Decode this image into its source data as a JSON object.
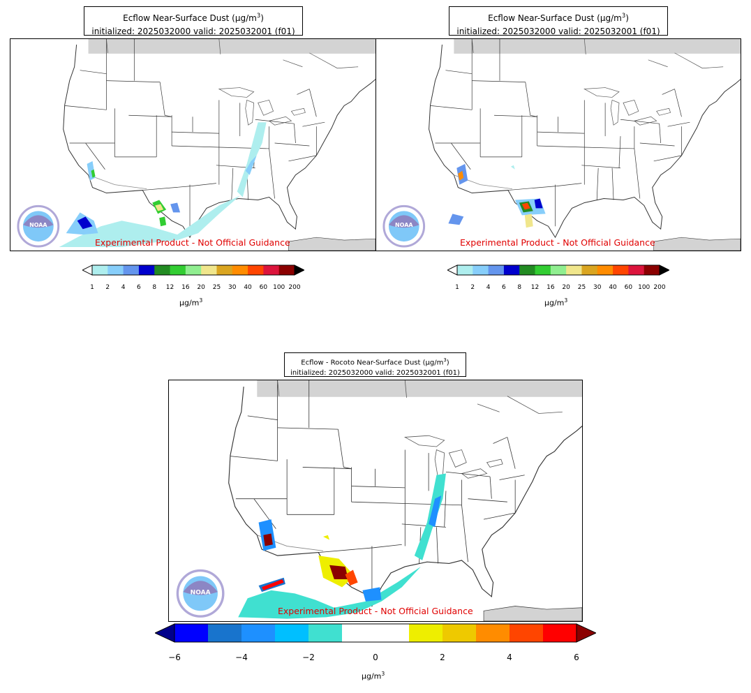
{
  "panels": [
    {
      "title_line1": "Ecflow Near-Surface Dust (μg/m",
      "title_sup": "3",
      "title_tail": ")",
      "title_line2": "initialized: 2025032000 valid: 2025032001 (f01)",
      "disclaimer": "Experimental Product - Not Official Guidance",
      "logo_text": "NOAA"
    },
    {
      "title_line1": "Ecflow Near-Surface Dust (μg/m",
      "title_sup": "3",
      "title_tail": ")",
      "title_line2": "initialized: 2025032000 valid: 2025032001 (f01)",
      "disclaimer": "Experimental Product - Not Official Guidance",
      "logo_text": "NOAA"
    },
    {
      "title_line1": "Ecflow - Rocoto Near-Surface Dust (μg/m",
      "title_sup": "3",
      "title_tail": ")",
      "title_line2": "initialized: 2025032000 valid: 2025032001 (f01)",
      "disclaimer": "Experimental Product - Not Official Guidance",
      "logo_text": "NOAA"
    }
  ],
  "colorbar_concentration": {
    "ticks": [
      "1",
      "2",
      "4",
      "6",
      "8",
      "12",
      "16",
      "20",
      "25",
      "30",
      "40",
      "60",
      "100",
      "200"
    ],
    "colors": [
      "#aeeeee",
      "#87cefa",
      "#6495ed",
      "#0000cd",
      "#228b22",
      "#32cd32",
      "#90ee90",
      "#f0e68c",
      "#daa520",
      "#ff8c00",
      "#ff4500",
      "#dc143c",
      "#8b0000"
    ],
    "under_color": "#ffffff",
    "over_color": "#000000",
    "unit": "μg/m",
    "unit_sup": "3"
  },
  "colorbar_difference": {
    "ticks": [
      "−6",
      "−4",
      "−2",
      "0",
      "2",
      "4",
      "6"
    ],
    "colors": [
      "#0000ff",
      "#1874cd",
      "#1e90ff",
      "#00bfff",
      "#40e0d0",
      "#ffffff",
      "#ffffff",
      "#eeee00",
      "#eec900",
      "#ff8c00",
      "#ff4500",
      "#ff0000"
    ],
    "under_color": "#00008b",
    "over_color": "#8b0000",
    "unit": "μg/m",
    "unit_sup": "3"
  },
  "colors": {
    "land": "#ffffff",
    "canada_fill": "#d3d3d3",
    "border": "#333333",
    "disclaimer": "#e00000"
  }
}
